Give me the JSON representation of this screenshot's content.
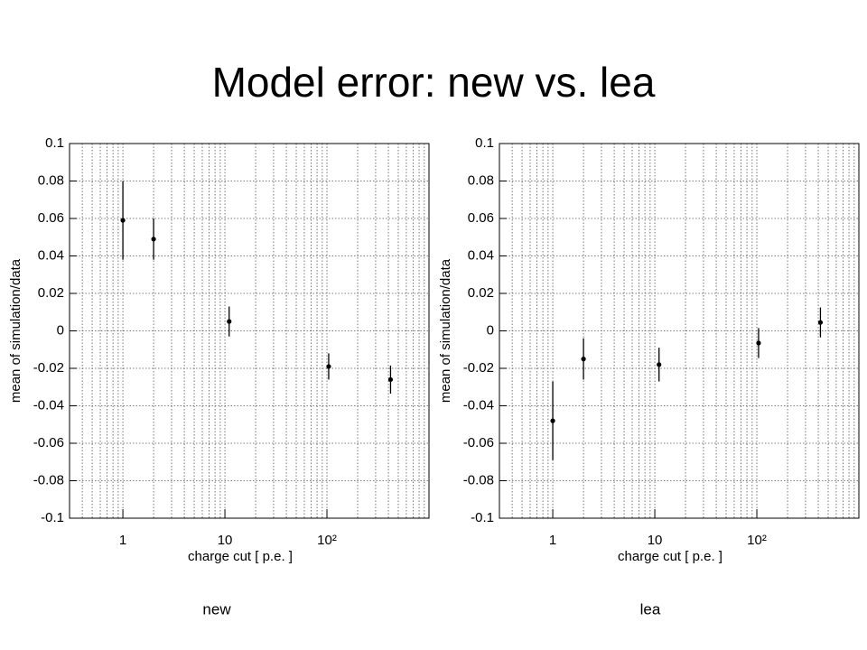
{
  "title": "Model error: new vs. lea",
  "chart_data": [
    {
      "type": "scatter",
      "caption": "new",
      "x_label": "charge cut [ p.e. ]",
      "y_label": "mean of simulation/data",
      "x": [
        1,
        2,
        11,
        104,
        420
      ],
      "values": [
        0.059,
        0.049,
        0.005,
        -0.019,
        -0.026
      ],
      "errors": [
        0.021,
        0.011,
        0.008,
        0.007,
        0.0075
      ],
      "color": "#000000",
      "log_x": true,
      "grid": true,
      "xlim": [
        0.3,
        1000
      ],
      "xticks": [
        1,
        10,
        {
          "value": 100,
          "label": "10²"
        }
      ],
      "ylim": [
        -0.1,
        0.1
      ],
      "yticks": [
        0.1,
        0.08,
        0.06,
        0.04,
        0.02,
        0,
        -0.02,
        -0.04,
        -0.06,
        -0.08,
        -0.1
      ]
    },
    {
      "type": "scatter",
      "caption": "lea",
      "x_label": "charge cut [ p.e. ]",
      "y_label": "mean of simulation/data",
      "x": [
        1,
        2,
        11,
        104,
        420
      ],
      "values": [
        -0.048,
        -0.015,
        -0.018,
        -0.0065,
        0.0045
      ],
      "errors": [
        0.021,
        0.011,
        0.009,
        0.008,
        0.008
      ],
      "color": "#000000",
      "log_x": true,
      "grid": true,
      "xlim": [
        0.3,
        1000
      ],
      "xticks": [
        1,
        10,
        {
          "value": 100,
          "label": "10²"
        }
      ],
      "ylim": [
        -0.1,
        0.1
      ],
      "yticks": [
        0.1,
        0.08,
        0.06,
        0.04,
        0.02,
        0,
        -0.02,
        -0.04,
        -0.06,
        -0.08,
        -0.1
      ]
    }
  ]
}
